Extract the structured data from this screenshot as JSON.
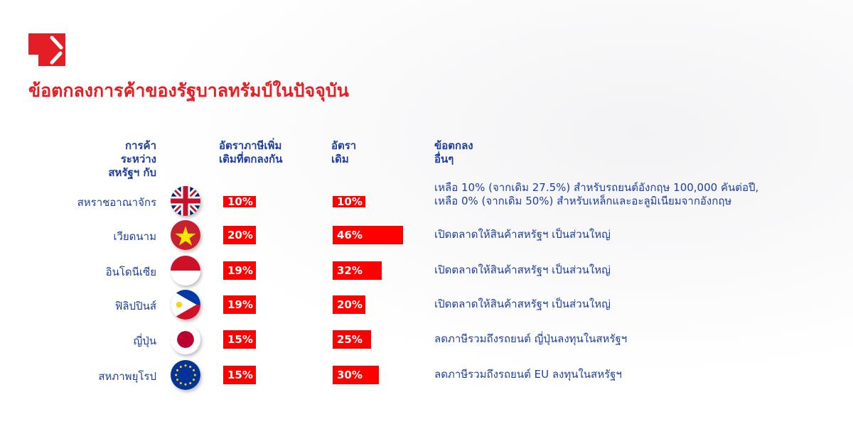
{
  "title": "ข้อตกลงการค้าของรัฐบาลทรัมป์ในปัจจุบัน",
  "colors": {
    "title": "#e31e24",
    "text": "#1d3f9e",
    "bar": "#ff0000"
  },
  "chart_data": {
    "type": "table",
    "headers": [
      "การค้าระหว่างสหรัฐฯ กับ",
      "อัตราภาษีเพิ่มเติมที่ตกลงกัน",
      "อัตราเดิม",
      "ข้อตกลงอื่นๆ"
    ],
    "header_lines": [
      [
        "การค้า",
        "ระหว่าง",
        "สหรัฐฯ กับ"
      ],
      [
        "อัตราภาษีเพิ่ม",
        "เติมที่ตกลงกัน"
      ],
      [
        "อัตรา",
        "เดิม"
      ],
      [
        "ข้อตกลง",
        "อื่นๆ"
      ]
    ],
    "rows": [
      {
        "country": "สหราชอาณาจักร",
        "flag": "uk-flag",
        "agreed": 10,
        "agreed_label": "10%",
        "original": 10,
        "original_label": "10%",
        "note": "เหลือ 10% (จากเดิม 27.5%) สำหรับรถยนต์อังกฤษ 100,000 คันต่อปี,",
        "note2": "เหลือ 0% (จากเดิม 50%) สำหรับเหล็กและอะลูมิเนียมจากอังกฤษ"
      },
      {
        "country": "เวียดนาม",
        "flag": "vietnam-flag",
        "agreed": 20,
        "agreed_label": "20%",
        "original": 46,
        "original_label": "46%",
        "note": "เปิดตลาดให้สินค้าสหรัฐฯ เป็นส่วนใหญ่"
      },
      {
        "country": "อินโดนีเซีย",
        "flag": "indonesia-flag",
        "agreed": 19,
        "agreed_label": "19%",
        "original": 32,
        "original_label": "32%",
        "note": "เปิดตลาดให้สินค้าสหรัฐฯ เป็นส่วนใหญ่"
      },
      {
        "country": "ฟิลิปปินส์",
        "flag": "philippines-flag",
        "agreed": 19,
        "agreed_label": "19%",
        "original": 20,
        "original_label": "20%",
        "note": "เปิดตลาดให้สินค้าสหรัฐฯ เป็นส่วนใหญ่"
      },
      {
        "country": "ญี่ปุ่น",
        "flag": "japan-flag",
        "agreed": 15,
        "agreed_label": "15%",
        "original": 25,
        "original_label": "25%",
        "note": "ลดภาษีรวมถึงรถยนต์ ญี่ปุ่นลงทุนในสหรัฐฯ"
      },
      {
        "country": "สหภาพยุโรป",
        "flag": "eu-flag",
        "agreed": 15,
        "agreed_label": "15%",
        "original": 30,
        "original_label": "30%",
        "note": "ลดภาษีรวมถึงรถยนต์ EU ลงทุนในสหรัฐฯ"
      }
    ]
  }
}
